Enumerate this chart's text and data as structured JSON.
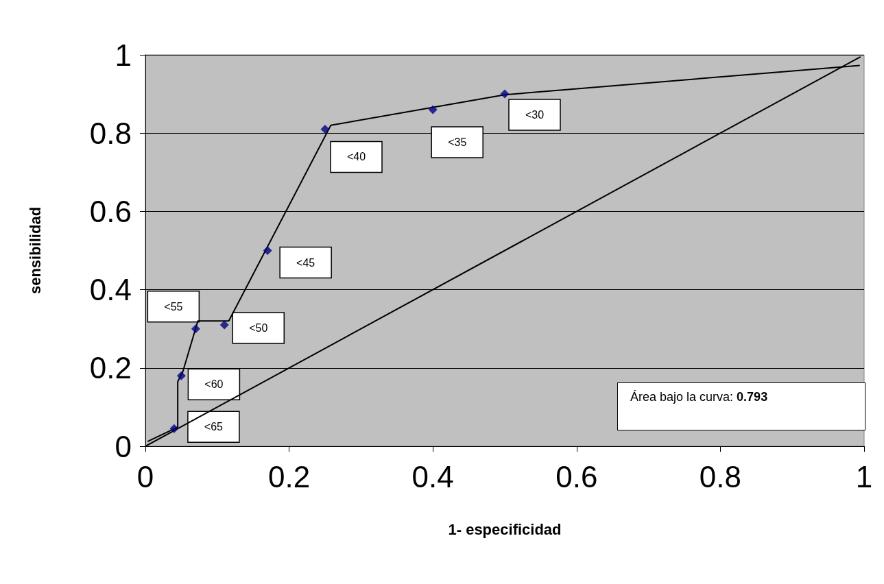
{
  "chart_data": {
    "type": "line",
    "xlabel": "1- especificidad",
    "ylabel": "sensibilidad",
    "xlim": [
      0,
      1
    ],
    "ylim": [
      0,
      1
    ],
    "xticks": [
      0,
      0.2,
      0.4,
      0.6,
      0.8,
      1
    ],
    "yticks": [
      0,
      0.2,
      0.4,
      0.6,
      0.8,
      1
    ],
    "grid": "y",
    "series": [
      {
        "color": "#000000",
        "x": [
          0.003,
          0.045,
          0.045,
          0.052,
          0.073,
          0.116,
          0.258,
          0.5,
          0.994
        ],
        "values": [
          0.012,
          0.049,
          0.165,
          0.19,
          0.32,
          0.32,
          0.82,
          0.898,
          0.973
        ],
        "marker": "none"
      },
      {
        "type": "scatter",
        "color": "#000080",
        "x": [
          0.04,
          0.05,
          0.07,
          0.11,
          0.17,
          0.25,
          0.4,
          0.5
        ],
        "values": [
          0.045,
          0.18,
          0.3,
          0.31,
          0.5,
          0.81,
          0.86,
          0.9
        ],
        "marker": "diamond"
      },
      {
        "color": "#000000",
        "x": [
          0,
          0.995
        ],
        "values": [
          0,
          0.995
        ],
        "marker": "none"
      }
    ],
    "annotations": [
      {
        "text": "<65",
        "x": 0.04,
        "y": 0.045
      },
      {
        "text": "<60",
        "x": 0.05,
        "y": 0.18
      },
      {
        "text": "<55",
        "x": 0.07,
        "y": 0.3
      },
      {
        "text": "<50",
        "x": 0.11,
        "y": 0.31
      },
      {
        "text": "<45",
        "x": 0.17,
        "y": 0.5
      },
      {
        "text": "<40",
        "x": 0.25,
        "y": 0.81
      },
      {
        "text": "<35",
        "x": 0.4,
        "y": 0.86
      },
      {
        "text": "<30",
        "x": 0.5,
        "y": 0.9
      },
      "Área bajo la curva: 0.793"
    ]
  }
}
